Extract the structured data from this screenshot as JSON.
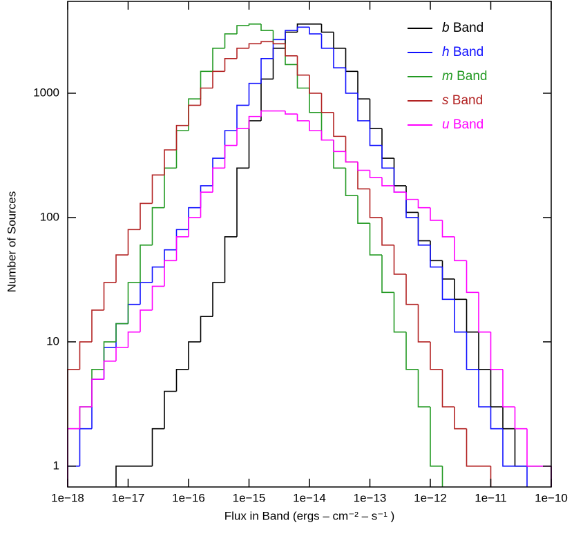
{
  "chart_data": {
    "type": "histogram",
    "x_label": "Flux in Band (ergs – cm⁻² – s⁻¹ )",
    "y_label": "Number of Sources",
    "xscale": "log",
    "yscale": "log",
    "xlim": [
      1e-18,
      1e-10
    ],
    "ylim": [
      0.68,
      5480
    ],
    "xticks": [
      {
        "value": 1e-18,
        "label": "1e−18"
      },
      {
        "value": 1e-17,
        "label": "1e−17"
      },
      {
        "value": 1e-16,
        "label": "1e−16"
      },
      {
        "value": 1e-15,
        "label": "1e−15"
      },
      {
        "value": 1e-14,
        "label": "1e−14"
      },
      {
        "value": 1e-13,
        "label": "1e−13"
      },
      {
        "value": 1e-12,
        "label": "1e−12"
      },
      {
        "value": 1e-11,
        "label": "1e−11"
      },
      {
        "value": 1e-10,
        "label": "1e−10"
      }
    ],
    "yticks": [
      1,
      10,
      100,
      1000
    ],
    "legend": "upper right",
    "bins": [
      1e-18,
      1.585e-18,
      2.512e-18,
      3.981e-18,
      6.31e-18,
      1e-17,
      1.585e-17,
      2.512e-17,
      3.981e-17,
      6.31e-17,
      1e-16,
      1.585e-16,
      2.512e-16,
      3.981e-16,
      6.31e-16,
      1e-15,
      1.585e-15,
      2.512e-15,
      3.981e-15,
      6.31e-15,
      1e-14,
      1.585e-14,
      2.512e-14,
      3.981e-14,
      6.31e-14,
      1e-13,
      1.585e-13,
      2.512e-13,
      3.981e-13,
      6.31e-13,
      1e-12,
      1.585e-12,
      2.512e-12,
      3.981e-12,
      6.31e-12,
      1e-11,
      1.585e-11,
      2.512e-11,
      3.981e-11,
      6.31e-11,
      1e-10
    ],
    "series": [
      {
        "name": "b Band",
        "color": "#000000",
        "values": [
          null,
          null,
          null,
          null,
          1,
          1,
          1,
          2,
          4,
          6,
          10,
          16,
          30,
          70,
          250,
          600,
          1300,
          2300,
          3100,
          3600,
          3600,
          3100,
          2300,
          1500,
          900,
          520,
          300,
          180,
          110,
          65,
          45,
          32,
          22,
          12,
          6,
          3,
          2,
          1,
          1,
          1
        ]
      },
      {
        "name": "h Band",
        "color": "#1010ff",
        "values": [
          1,
          2,
          5,
          9,
          14,
          20,
          30,
          40,
          55,
          80,
          120,
          180,
          300,
          500,
          800,
          1200,
          1900,
          2700,
          3200,
          3400,
          3000,
          2300,
          1600,
          1000,
          600,
          380,
          250,
          160,
          100,
          60,
          40,
          22,
          12,
          6,
          3,
          2,
          1,
          1,
          null,
          null
        ]
      },
      {
        "name": "m Band",
        "color": "#229922",
        "values": [
          2,
          3,
          6,
          10,
          14,
          30,
          60,
          120,
          250,
          500,
          900,
          1500,
          2300,
          3000,
          3500,
          3600,
          3200,
          2500,
          1700,
          1100,
          700,
          420,
          250,
          150,
          90,
          50,
          25,
          12,
          6,
          3,
          1,
          null,
          null,
          null,
          null,
          null,
          null,
          null,
          null,
          null
        ]
      },
      {
        "name": "s Band",
        "color": "#b22222",
        "values": [
          6,
          10,
          18,
          30,
          50,
          80,
          130,
          220,
          350,
          550,
          800,
          1100,
          1500,
          1900,
          2300,
          2500,
          2600,
          2500,
          2000,
          1400,
          1000,
          700,
          450,
          280,
          170,
          100,
          60,
          35,
          20,
          10,
          6,
          3,
          2,
          1,
          1,
          null,
          null,
          null,
          null,
          null
        ]
      },
      {
        "name": "u Band",
        "color": "#ff00ff",
        "values": [
          2,
          3,
          5,
          7,
          9,
          12,
          18,
          28,
          45,
          70,
          100,
          160,
          250,
          380,
          520,
          650,
          720,
          720,
          680,
          600,
          500,
          420,
          340,
          280,
          240,
          210,
          180,
          160,
          140,
          120,
          95,
          70,
          45,
          25,
          12,
          6,
          3,
          2,
          1,
          1
        ]
      }
    ]
  }
}
